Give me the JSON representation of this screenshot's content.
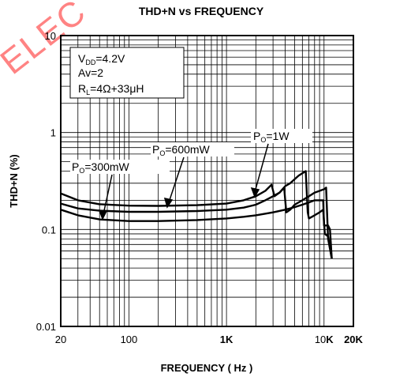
{
  "chart_data": {
    "type": "line",
    "title": "THD+N vs FREQUENCY",
    "xlabel": "FREQUENCY ( Hz )",
    "ylabel": "THD+N (%)",
    "x_scale": "log",
    "y_scale": "log",
    "xlim": [
      20,
      20000
    ],
    "ylim": [
      0.01,
      10
    ],
    "grid": true,
    "x_ticks": [
      {
        "value": 20,
        "label": "20"
      },
      {
        "value": 100,
        "label": "100"
      },
      {
        "value": 1000,
        "label": "1K"
      },
      {
        "value": 10000,
        "label": "10K"
      },
      {
        "value": 20000,
        "label": "20K"
      }
    ],
    "y_ticks": [
      {
        "value": 0.01,
        "label": "0.01"
      },
      {
        "value": 0.1,
        "label": "0.1"
      },
      {
        "value": 1,
        "label": "1"
      },
      {
        "value": 10,
        "label": "10"
      }
    ],
    "conditions": {
      "vdd": "V DD=4.2V",
      "vdd_main": "V",
      "vdd_sub": "DD",
      "vdd_rest": "=4.2V",
      "av": "Av=2",
      "rl_main": "R",
      "rl_sub": "L",
      "rl_rest": "=4Ω+33μH"
    },
    "series": [
      {
        "name": "PO=1W",
        "label_main": "P",
        "label_sub": "O",
        "label_rest": "=1W",
        "points": [
          [
            20,
            0.235
          ],
          [
            30,
            0.2
          ],
          [
            50,
            0.182
          ],
          [
            100,
            0.176
          ],
          [
            200,
            0.175
          ],
          [
            500,
            0.178
          ],
          [
            1000,
            0.185
          ],
          [
            1500,
            0.2
          ],
          [
            2000,
            0.22
          ],
          [
            2500,
            0.25
          ],
          [
            2900,
            0.29
          ],
          [
            3100,
            0.22
          ],
          [
            3500,
            0.24
          ],
          [
            4000,
            0.28
          ],
          [
            4500,
            0.3
          ],
          [
            5000,
            0.33
          ],
          [
            5500,
            0.36
          ],
          [
            6000,
            0.38
          ],
          [
            6500,
            0.4
          ],
          [
            6800,
            0.15
          ],
          [
            7000,
            0.13
          ],
          [
            8000,
            0.14
          ],
          [
            9000,
            0.15
          ],
          [
            9800,
            0.16
          ],
          [
            10200,
            0.09
          ],
          [
            11000,
            0.085
          ],
          [
            12000,
            0.05
          ]
        ]
      },
      {
        "name": "PO=600mW",
        "label_main": "P",
        "label_sub": "O",
        "label_rest": "=600mW",
        "points": [
          [
            20,
            0.185
          ],
          [
            30,
            0.165
          ],
          [
            50,
            0.156
          ],
          [
            100,
            0.152
          ],
          [
            200,
            0.152
          ],
          [
            500,
            0.155
          ],
          [
            1000,
            0.16
          ],
          [
            1500,
            0.168
          ],
          [
            2000,
            0.18
          ],
          [
            2500,
            0.2
          ],
          [
            3000,
            0.22
          ],
          [
            3500,
            0.24
          ],
          [
            3900,
            0.27
          ],
          [
            4100,
            0.15
          ],
          [
            4500,
            0.16
          ],
          [
            5000,
            0.18
          ],
          [
            6000,
            0.2
          ],
          [
            7000,
            0.22
          ],
          [
            8000,
            0.24
          ],
          [
            9000,
            0.25
          ],
          [
            10000,
            0.26
          ],
          [
            10500,
            0.27
          ],
          [
            11000,
            0.08
          ],
          [
            12000,
            0.05
          ]
        ]
      },
      {
        "name": "PO=300mW",
        "label_main": "P",
        "label_sub": "O",
        "label_rest": "=300mW",
        "points": [
          [
            20,
            0.16
          ],
          [
            30,
            0.14
          ],
          [
            50,
            0.127
          ],
          [
            100,
            0.122
          ],
          [
            200,
            0.122
          ],
          [
            500,
            0.125
          ],
          [
            1000,
            0.13
          ],
          [
            1500,
            0.135
          ],
          [
            2000,
            0.14
          ],
          [
            3000,
            0.15
          ],
          [
            4000,
            0.16
          ],
          [
            5000,
            0.17
          ],
          [
            6000,
            0.18
          ],
          [
            7000,
            0.19
          ],
          [
            8000,
            0.2
          ],
          [
            9000,
            0.2
          ],
          [
            9800,
            0.2
          ],
          [
            10000,
            0.11
          ],
          [
            11000,
            0.11
          ],
          [
            11500,
            0.1
          ],
          [
            12000,
            0.05
          ]
        ]
      }
    ]
  },
  "watermark": "ELEC",
  "colors": {
    "line": "#000000",
    "grid": "#000000",
    "watermark": "#ff5a5a"
  }
}
